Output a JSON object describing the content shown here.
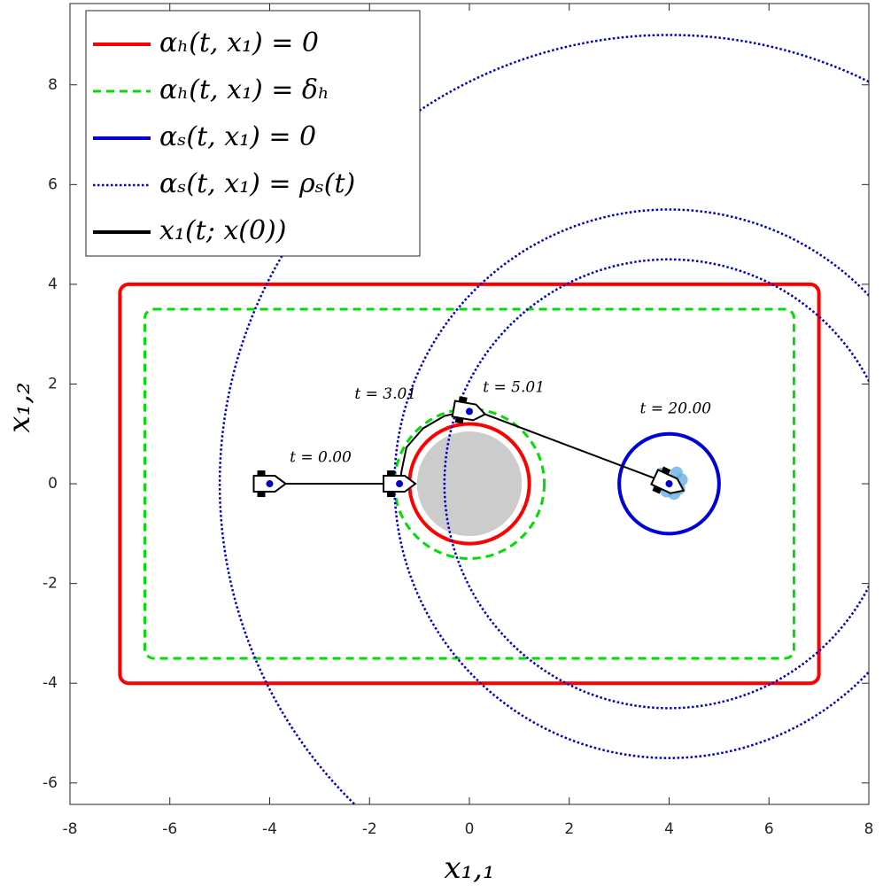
{
  "chart_data": {
    "type": "line",
    "xlabel": "x₁,₁",
    "ylabel": "x₁,₂",
    "xlim": [
      -8,
      8
    ],
    "ylim": [
      -6.43,
      9.63
    ],
    "xticks": [
      -8,
      -6,
      -4,
      -2,
      0,
      2,
      4,
      6,
      8
    ],
    "yticks": [
      -6,
      -4,
      -2,
      0,
      2,
      4,
      6,
      8
    ],
    "legend": "upper left",
    "series": [
      {
        "name": "αₕ(t, x₁) = 0",
        "color": "#ff0000",
        "dash": "solid",
        "shapes": [
          {
            "kind": "rect",
            "x": [
              -7,
              7
            ],
            "y": [
              -4,
              4
            ]
          },
          {
            "kind": "circle",
            "cx": 0,
            "cy": 0,
            "r": 1.2
          }
        ]
      },
      {
        "name": "αₕ(t, x₁) = δₕ",
        "color": "#00dd00",
        "dash": "dashed",
        "shapes": [
          {
            "kind": "rect",
            "x": [
              -6.5,
              6.5
            ],
            "y": [
              -3.5,
              3.5
            ]
          },
          {
            "kind": "circle",
            "cx": 0,
            "cy": 0,
            "r": 1.5
          }
        ]
      },
      {
        "name": "αₛ(t, x₁) = 0",
        "color": "#0000dd",
        "dash": "solid",
        "shapes": [
          {
            "kind": "circle",
            "cx": 4,
            "cy": 0,
            "r": 1
          }
        ]
      },
      {
        "name": "αₛ(t, x₁) = ρₛ(t)",
        "color": "#0000cc",
        "dash": "dotted",
        "shapes": [
          {
            "kind": "circle",
            "cx": 4,
            "cy": 0,
            "r": 4.5
          },
          {
            "kind": "circle",
            "cx": 4,
            "cy": 0,
            "r": 5.5
          },
          {
            "kind": "circle",
            "cx": 4,
            "cy": 0,
            "r": 9
          }
        ]
      },
      {
        "name": "x₁(t; x(0))",
        "color": "#000000",
        "dash": "solid",
        "x": [
          -4,
          -1.4,
          -1.35,
          -1.26,
          -0.93,
          -0.5,
          -0.13,
          0.3,
          4
        ],
        "y": [
          0,
          0,
          0.3,
          0.73,
          1.11,
          1.36,
          1.44,
          1.4,
          0
        ]
      }
    ],
    "obstacle": {
      "color": "#cccccc",
      "cx": 0,
      "cy": 0,
      "r": 1.05
    },
    "samples": {
      "color": "#6aaee6",
      "x": [
        3.85,
        4.15,
        3.95,
        4.2,
        4.05,
        3.8,
        4.25,
        4.1
      ],
      "y": [
        0.2,
        0.22,
        -0.15,
        -0.1,
        0.05,
        -0.05,
        0.08,
        -0.2
      ]
    },
    "robots": [
      {
        "x": -4,
        "y": 0,
        "heading": 0
      },
      {
        "x": -1.4,
        "y": 0,
        "heading": 0
      },
      {
        "x": 0,
        "y": 1.45,
        "heading": -10
      },
      {
        "x": 4,
        "y": 0,
        "heading": -25
      }
    ],
    "annotations": [
      {
        "text": "t = 0.00",
        "x": -2.98,
        "y": 0.52
      },
      {
        "text": "t = 3.01",
        "x": -1.68,
        "y": 1.79
      },
      {
        "text": "t = 5.01",
        "x": 0.89,
        "y": 1.92
      },
      {
        "text": "t = 20.00",
        "x": 4.13,
        "y": 1.49
      }
    ]
  }
}
